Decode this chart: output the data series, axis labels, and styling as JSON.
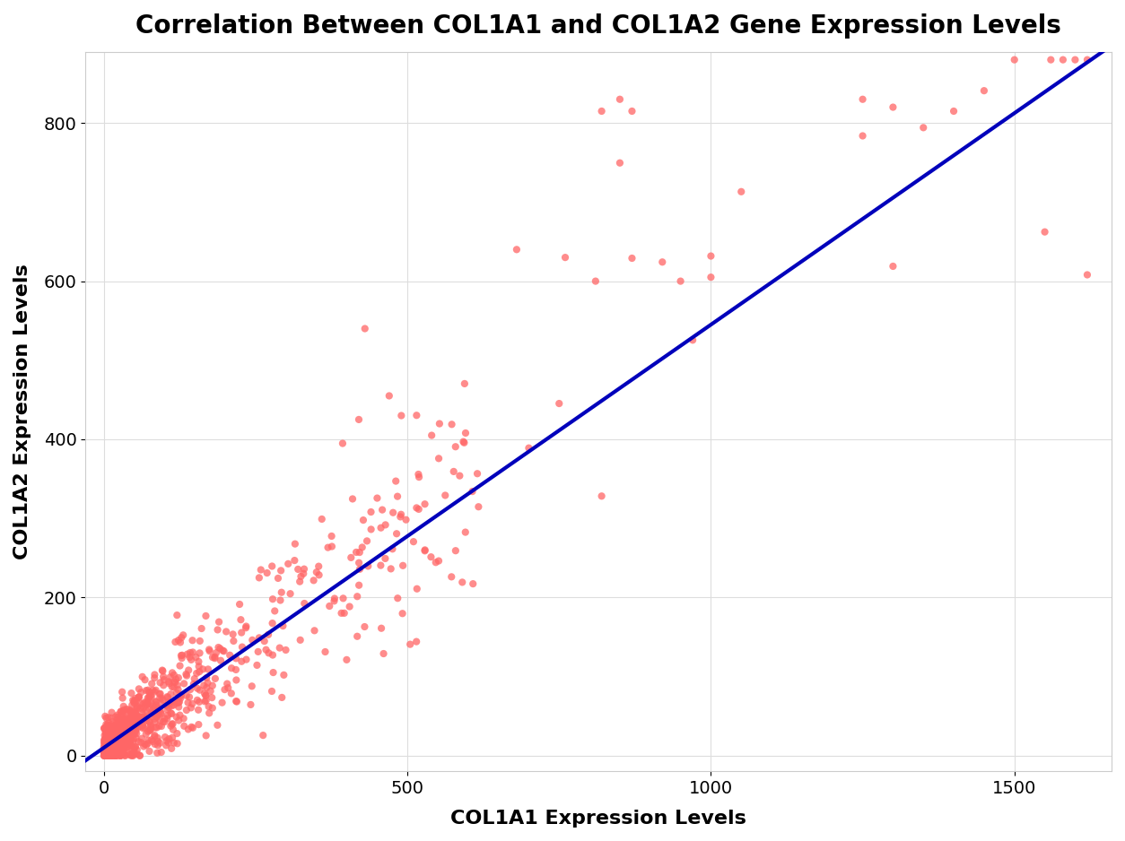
{
  "title": "Correlation Between COL1A1 and COL1A2 Gene Expression Levels",
  "xlabel": "COL1A1 Expression Levels",
  "ylabel": "COL1A2 Expression Levels",
  "xlim": [
    -30,
    1660
  ],
  "ylim": [
    -20,
    890
  ],
  "xticks": [
    0,
    500,
    1000,
    1500
  ],
  "yticks": [
    0,
    200,
    400,
    600,
    800
  ],
  "dot_color": "#FF6666",
  "dot_alpha": 0.75,
  "dot_size": 35,
  "line_color": "#0000BB",
  "line_width": 3.0,
  "bg_color": "#FFFFFF",
  "grid_color": "#DDDDDD",
  "title_fontsize": 20,
  "label_fontsize": 16,
  "tick_fontsize": 14,
  "seed": 7,
  "slope": 0.535,
  "intercept": 10.0,
  "noise_rel": 0.12
}
